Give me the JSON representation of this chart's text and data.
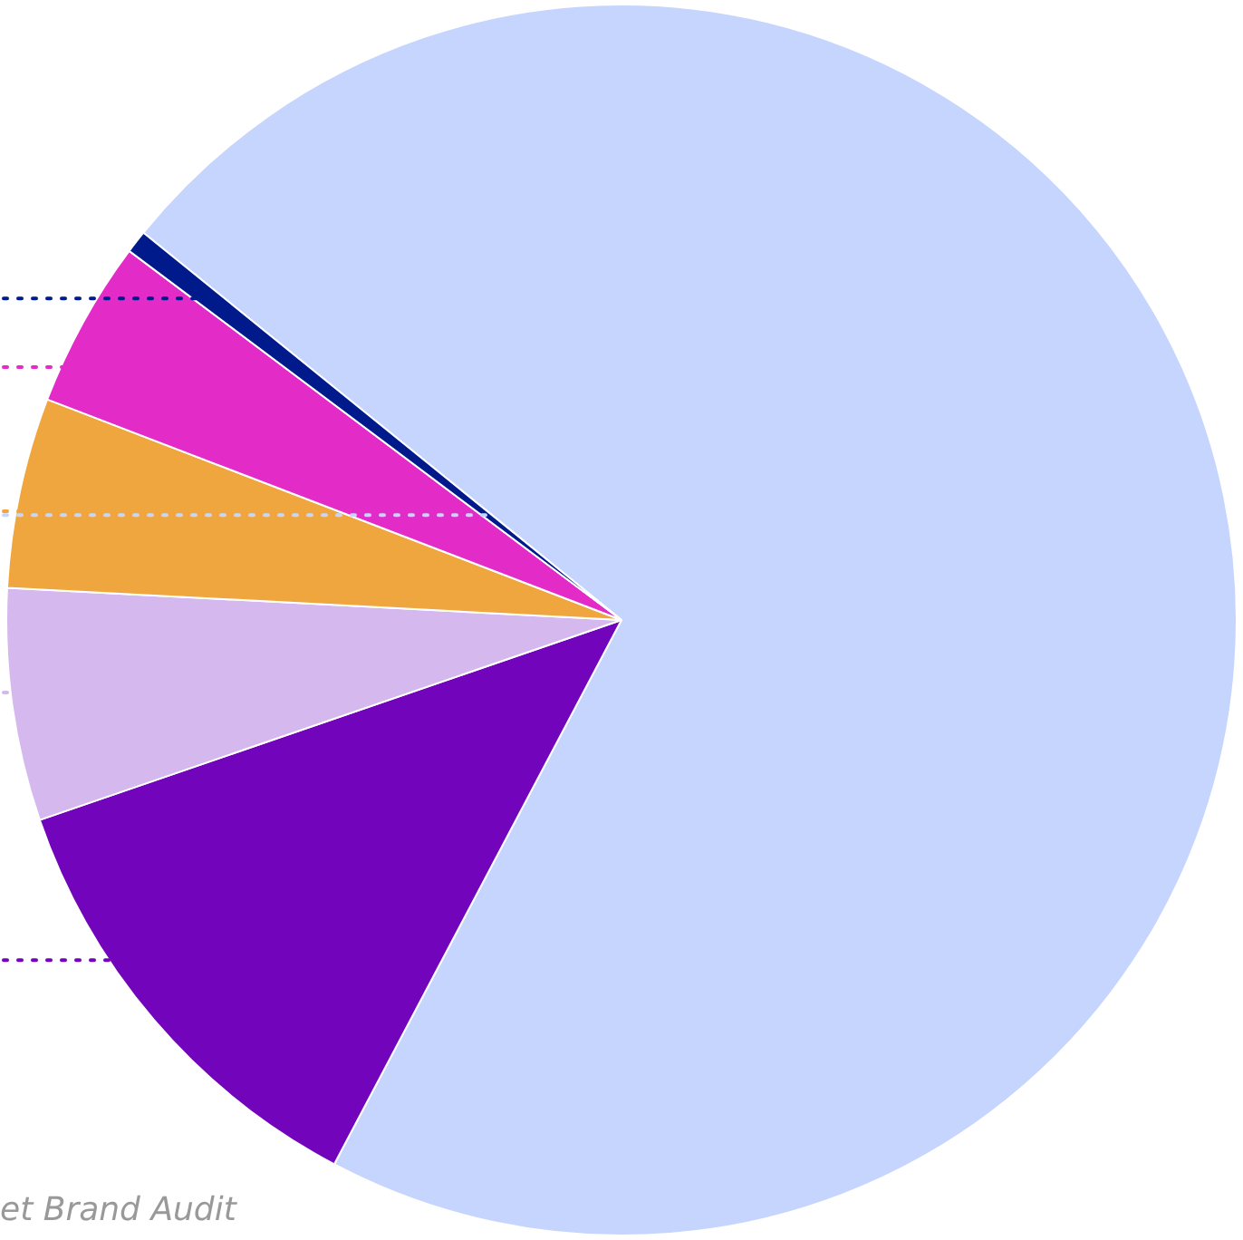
{
  "chart_data": {
    "type": "pie",
    "categories": [
      null,
      null,
      null,
      null,
      null,
      null
    ],
    "values": [
      71.9,
      12.0,
      6.1,
      5.0,
      4.4,
      0.6
    ],
    "colors": [
      "#c5d5fe",
      "#7204bb",
      "#d4b8ee",
      "#f0a63e",
      "#e32bc8",
      "#001a8c"
    ],
    "legend": false,
    "annotations": [
      "et Brand Audit"
    ]
  }
}
